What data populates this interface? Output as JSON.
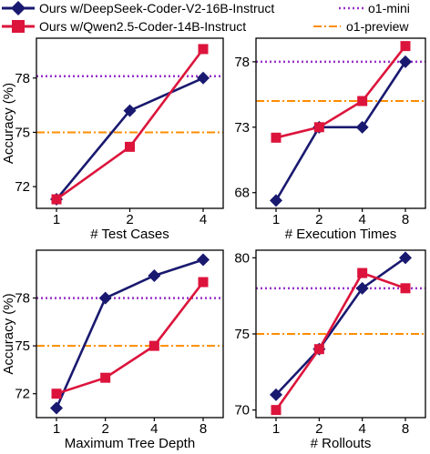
{
  "legend": {
    "entries": [
      {
        "label": "Ours w/DeepSeek-Coder-V2-16B-Instruct",
        "color": "#191970",
        "style": "solid",
        "marker": "diamond"
      },
      {
        "label": "Ours w/Qwen2.5-Coder-14B-Instruct",
        "color": "#dc143c",
        "style": "solid",
        "marker": "square"
      },
      {
        "label": "o1-mini",
        "color": "#9932cc",
        "style": "dotted",
        "marker": ""
      },
      {
        "label": "o1-preview",
        "color": "#ff8c00",
        "style": "dashdot",
        "marker": ""
      }
    ]
  },
  "chart_data": [
    {
      "type": "line",
      "xlabel": "# Test Cases",
      "ylabel": "Accuracy (%)",
      "categories": [
        "1",
        "2",
        "4"
      ],
      "yticks": [
        72,
        75,
        78
      ],
      "ylim": [
        70.8,
        80.2
      ],
      "series": [
        {
          "name": "Ours w/DeepSeek-Coder-V2-16B-Instruct",
          "values": [
            71.3,
            76.2,
            78.0
          ]
        },
        {
          "name": "Ours w/Qwen2.5-Coder-14B-Instruct",
          "values": [
            71.3,
            74.2,
            79.6
          ]
        }
      ],
      "reference_lines": [
        {
          "name": "o1-mini",
          "value": 78.1
        },
        {
          "name": "o1-preview",
          "value": 75.0
        }
      ]
    },
    {
      "type": "line",
      "xlabel": "# Execution Times",
      "ylabel": "",
      "categories": [
        "1",
        "2",
        "4",
        "8"
      ],
      "yticks": [
        68,
        73,
        78
      ],
      "ylim": [
        66.8,
        79.8
      ],
      "series": [
        {
          "name": "Ours w/DeepSeek-Coder-V2-16B-Instruct",
          "values": [
            67.4,
            73.0,
            73.0,
            78.0
          ]
        },
        {
          "name": "Ours w/Qwen2.5-Coder-14B-Instruct",
          "values": [
            72.2,
            73.0,
            75.0,
            79.2
          ]
        }
      ],
      "reference_lines": [
        {
          "name": "o1-mini",
          "value": 78.0
        },
        {
          "name": "o1-preview",
          "value": 75.0
        }
      ]
    },
    {
      "type": "line",
      "xlabel": "Maximum Tree Depth",
      "ylabel": "Accuracy (%)",
      "categories": [
        "1",
        "2",
        "4",
        "8"
      ],
      "yticks": [
        72,
        75,
        78
      ],
      "ylim": [
        70.5,
        81.0
      ],
      "series": [
        {
          "name": "Ours w/DeepSeek-Coder-V2-16B-Instruct",
          "values": [
            71.1,
            78.0,
            79.4,
            80.4
          ]
        },
        {
          "name": "Ours w/Qwen2.5-Coder-14B-Instruct",
          "values": [
            72.0,
            73.0,
            75.0,
            79.0
          ]
        }
      ],
      "reference_lines": [
        {
          "name": "o1-mini",
          "value": 78.0
        },
        {
          "name": "o1-preview",
          "value": 75.0
        }
      ]
    },
    {
      "type": "line",
      "xlabel": "# Rollouts",
      "ylabel": "",
      "categories": [
        "1",
        "2",
        "4",
        "8"
      ],
      "yticks": [
        70,
        75,
        80
      ],
      "ylim": [
        69.5,
        80.5
      ],
      "series": [
        {
          "name": "Ours w/DeepSeek-Coder-V2-16B-Instruct",
          "values": [
            71.0,
            74.0,
            78.0,
            80.0
          ]
        },
        {
          "name": "Ours w/Qwen2.5-Coder-14B-Instruct",
          "values": [
            70.0,
            74.0,
            79.0,
            78.0
          ]
        }
      ],
      "reference_lines": [
        {
          "name": "o1-mini",
          "value": 78.0
        },
        {
          "name": "o1-preview",
          "value": 75.0
        }
      ]
    }
  ]
}
